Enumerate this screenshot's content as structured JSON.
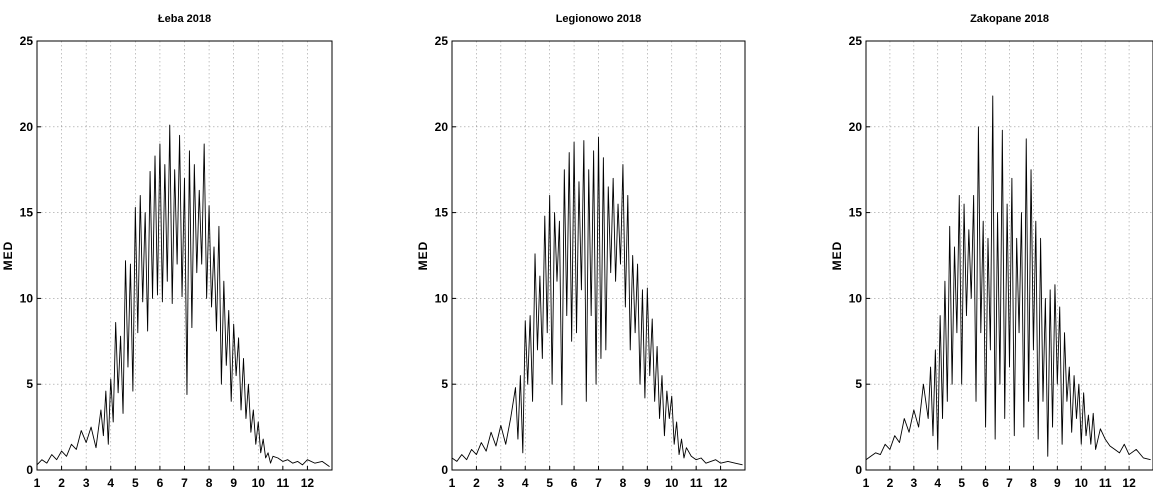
{
  "chart_data": [
    {
      "type": "line",
      "title": "Łeba 2018",
      "ylabel": "MED",
      "xlabel": "",
      "xlim": [
        1,
        13
      ],
      "ylim": [
        0,
        25
      ],
      "xticks": [
        "1",
        "2",
        "3",
        "4",
        "5",
        "6",
        "7",
        "8",
        "9",
        "10",
        "11",
        "12"
      ],
      "yticks": [
        "0",
        "5",
        "10",
        "15",
        "20",
        "25"
      ],
      "grid": true,
      "series": [
        {
          "x": [
            1.0,
            1.2,
            1.4,
            1.6,
            1.8,
            2.0,
            2.2,
            2.4,
            2.6,
            2.8,
            3.0,
            3.2,
            3.4,
            3.6,
            3.7,
            3.8,
            3.9,
            4.0,
            4.1,
            4.2,
            4.3,
            4.4,
            4.5,
            4.6,
            4.7,
            4.8,
            4.9,
            5.0,
            5.1,
            5.2,
            5.3,
            5.4,
            5.5,
            5.6,
            5.7,
            5.8,
            5.9,
            6.0,
            6.1,
            6.2,
            6.3,
            6.4,
            6.5,
            6.6,
            6.7,
            6.8,
            6.9,
            7.0,
            7.1,
            7.2,
            7.3,
            7.4,
            7.5,
            7.6,
            7.7,
            7.8,
            7.9,
            8.0,
            8.1,
            8.2,
            8.3,
            8.4,
            8.5,
            8.6,
            8.7,
            8.8,
            8.9,
            9.0,
            9.1,
            9.2,
            9.3,
            9.4,
            9.5,
            9.6,
            9.7,
            9.8,
            9.9,
            10.0,
            10.1,
            10.2,
            10.3,
            10.4,
            10.5,
            10.6,
            10.8,
            11.0,
            11.2,
            11.4,
            11.6,
            11.8,
            12.0,
            12.3,
            12.6,
            12.9
          ],
          "y": [
            0.3,
            0.6,
            0.4,
            0.9,
            0.6,
            1.1,
            0.8,
            1.5,
            1.2,
            2.3,
            1.6,
            2.5,
            1.3,
            3.5,
            2.0,
            4.6,
            1.5,
            5.3,
            2.8,
            8.6,
            4.5,
            7.8,
            3.3,
            12.2,
            6.0,
            12.0,
            4.6,
            15.3,
            8.0,
            16.0,
            9.8,
            15.0,
            8.1,
            17.4,
            10.0,
            18.3,
            10.2,
            19.0,
            9.8,
            17.8,
            11.0,
            20.1,
            9.7,
            17.5,
            12.0,
            19.5,
            10.1,
            17.0,
            4.4,
            18.6,
            8.3,
            17.8,
            11.5,
            16.3,
            12.0,
            19.0,
            10.0,
            15.4,
            9.5,
            13.0,
            8.1,
            14.2,
            5.0,
            11.0,
            6.1,
            9.3,
            4.0,
            8.5,
            5.5,
            7.7,
            3.5,
            6.5,
            3.0,
            5.0,
            2.2,
            3.5,
            1.5,
            2.8,
            1.0,
            1.8,
            0.7,
            1.0,
            0.4,
            0.8,
            0.7,
            0.5,
            0.6,
            0.4,
            0.5,
            0.3,
            0.6,
            0.4,
            0.5,
            0.2
          ]
        }
      ]
    },
    {
      "type": "line",
      "title": "Legionowo 2018",
      "ylabel": "MED",
      "xlabel": "",
      "xlim": [
        1,
        13
      ],
      "ylim": [
        0,
        25
      ],
      "xticks": [
        "1",
        "2",
        "3",
        "4",
        "5",
        "6",
        "7",
        "8",
        "9",
        "10",
        "11",
        "12"
      ],
      "yticks": [
        "0",
        "5",
        "10",
        "15",
        "20",
        "25"
      ],
      "grid": true,
      "series": [
        {
          "x": [
            1.0,
            1.2,
            1.4,
            1.6,
            1.8,
            2.0,
            2.2,
            2.4,
            2.6,
            2.8,
            3.0,
            3.2,
            3.4,
            3.6,
            3.7,
            3.8,
            3.9,
            4.0,
            4.1,
            4.2,
            4.3,
            4.4,
            4.5,
            4.6,
            4.7,
            4.8,
            4.9,
            5.0,
            5.1,
            5.2,
            5.3,
            5.4,
            5.5,
            5.6,
            5.7,
            5.8,
            5.9,
            6.0,
            6.1,
            6.2,
            6.3,
            6.4,
            6.5,
            6.6,
            6.7,
            6.8,
            6.9,
            7.0,
            7.1,
            7.2,
            7.3,
            7.4,
            7.5,
            7.6,
            7.7,
            7.8,
            7.9,
            8.0,
            8.1,
            8.2,
            8.3,
            8.4,
            8.5,
            8.6,
            8.7,
            8.8,
            8.9,
            9.0,
            9.1,
            9.2,
            9.3,
            9.4,
            9.5,
            9.6,
            9.7,
            9.8,
            9.9,
            10.0,
            10.1,
            10.2,
            10.3,
            10.4,
            10.5,
            10.6,
            10.8,
            11.0,
            11.2,
            11.4,
            11.6,
            11.8,
            12.0,
            12.3,
            12.6,
            12.9
          ],
          "y": [
            0.7,
            0.5,
            0.9,
            0.6,
            1.2,
            0.9,
            1.6,
            1.1,
            2.2,
            1.4,
            2.6,
            1.5,
            3.0,
            4.8,
            1.8,
            5.5,
            1.0,
            8.7,
            5.0,
            9.0,
            4.0,
            12.6,
            7.0,
            11.3,
            6.5,
            14.8,
            8.0,
            16.0,
            5.0,
            15.0,
            11.0,
            14.5,
            3.8,
            17.5,
            9.0,
            18.5,
            7.5,
            19.1,
            8.0,
            16.8,
            10.5,
            19.2,
            4.0,
            17.5,
            9.0,
            18.6,
            5.0,
            19.4,
            6.5,
            18.2,
            7.0,
            16.5,
            11.5,
            17.0,
            11.0,
            15.5,
            12.0,
            17.8,
            9.5,
            16.0,
            7.0,
            12.5,
            8.0,
            12.0,
            5.0,
            10.5,
            4.2,
            10.6,
            5.5,
            8.8,
            4.0,
            7.2,
            3.0,
            5.5,
            2.0,
            4.6,
            3.0,
            4.3,
            1.5,
            2.8,
            0.9,
            1.8,
            0.7,
            1.3,
            0.8,
            0.6,
            0.7,
            0.4,
            0.5,
            0.6,
            0.4,
            0.5,
            0.4,
            0.3
          ]
        }
      ]
    },
    {
      "type": "line",
      "title": "Zakopane 2018",
      "ylabel": "MED",
      "xlabel": "",
      "xlim": [
        1,
        13
      ],
      "ylim": [
        0,
        25
      ],
      "xticks": [
        "1",
        "2",
        "3",
        "4",
        "5",
        "6",
        "7",
        "8",
        "9",
        "10",
        "11",
        "12"
      ],
      "yticks": [
        "0",
        "5",
        "10",
        "15",
        "20",
        "25"
      ],
      "grid": true,
      "series": [
        {
          "x": [
            1.0,
            1.2,
            1.4,
            1.6,
            1.8,
            2.0,
            2.2,
            2.4,
            2.6,
            2.8,
            3.0,
            3.2,
            3.4,
            3.6,
            3.7,
            3.8,
            3.9,
            4.0,
            4.1,
            4.2,
            4.3,
            4.4,
            4.5,
            4.6,
            4.7,
            4.8,
            4.9,
            5.0,
            5.1,
            5.2,
            5.3,
            5.4,
            5.5,
            5.6,
            5.7,
            5.8,
            5.9,
            6.0,
            6.1,
            6.2,
            6.3,
            6.4,
            6.5,
            6.6,
            6.7,
            6.8,
            6.9,
            7.0,
            7.1,
            7.2,
            7.3,
            7.4,
            7.5,
            7.6,
            7.7,
            7.8,
            7.9,
            8.0,
            8.1,
            8.2,
            8.3,
            8.4,
            8.5,
            8.6,
            8.7,
            8.8,
            8.9,
            9.0,
            9.1,
            9.2,
            9.3,
            9.4,
            9.5,
            9.6,
            9.7,
            9.8,
            9.9,
            10.0,
            10.1,
            10.2,
            10.3,
            10.4,
            10.5,
            10.6,
            10.8,
            11.0,
            11.2,
            11.4,
            11.6,
            11.8,
            12.0,
            12.3,
            12.6,
            12.9
          ],
          "y": [
            0.6,
            0.8,
            1.0,
            0.9,
            1.5,
            1.2,
            2.0,
            1.6,
            3.0,
            2.2,
            3.5,
            2.5,
            5.0,
            3.0,
            6.0,
            2.0,
            7.0,
            1.2,
            9.0,
            3.0,
            11.0,
            4.0,
            14.2,
            5.0,
            13.0,
            8.0,
            16.0,
            5.0,
            15.5,
            9.0,
            14.0,
            10.0,
            16.0,
            4.0,
            20.0,
            8.0,
            14.5,
            2.5,
            13.5,
            7.0,
            21.8,
            1.8,
            15.0,
            5.0,
            19.8,
            3.0,
            15.5,
            6.0,
            17.0,
            2.0,
            13.5,
            8.0,
            15.0,
            2.5,
            19.3,
            4.0,
            17.5,
            7.0,
            14.5,
            1.8,
            13.5,
            4.0,
            10.0,
            0.8,
            10.5,
            2.5,
            10.8,
            5.0,
            9.5,
            1.5,
            8.0,
            4.0,
            6.0,
            2.2,
            5.5,
            3.0,
            5.0,
            1.5,
            4.5,
            2.0,
            3.2,
            1.5,
            3.3,
            1.2,
            2.4,
            1.8,
            1.4,
            1.2,
            1.0,
            1.5,
            0.9,
            1.2,
            0.7,
            0.6
          ]
        }
      ]
    }
  ]
}
